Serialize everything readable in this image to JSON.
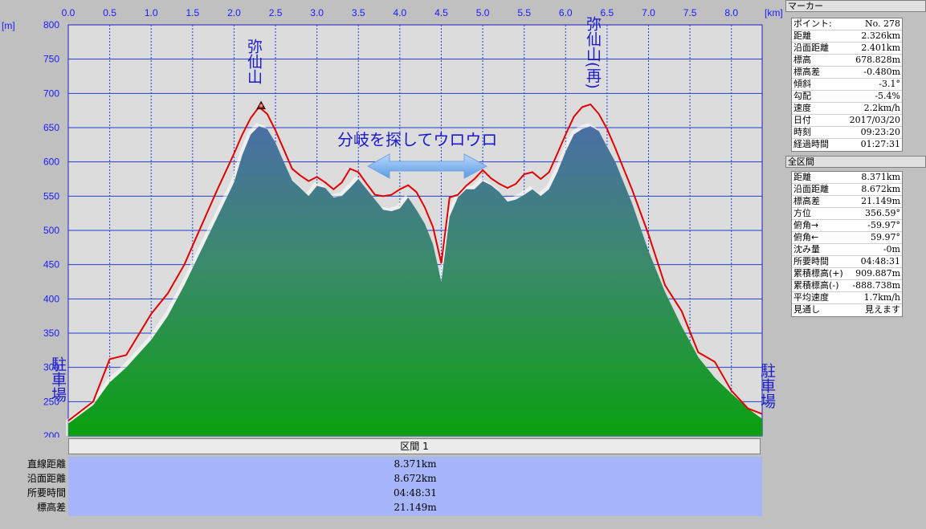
{
  "chart_data": {
    "type": "area",
    "x_unit": "[km]",
    "y_unit": "[m]",
    "xlim": [
      0.0,
      8.371
    ],
    "ylim": [
      200,
      800
    ],
    "x_ticks": [
      "0.0",
      "0.5",
      "1.0",
      "1.5",
      "2.0",
      "2.5",
      "3.0",
      "3.5",
      "4.0",
      "4.5",
      "5.0",
      "5.5",
      "6.0",
      "6.5",
      "7.0",
      "7.5",
      "8.0"
    ],
    "y_ticks": [
      "800",
      "750",
      "700",
      "650",
      "600",
      "550",
      "500",
      "450",
      "400",
      "350",
      "300",
      "250",
      "200"
    ],
    "grid": true,
    "series": [
      {
        "role": "terrain",
        "x": [
          0.0,
          0.3,
          0.5,
          0.7,
          1.0,
          1.2,
          1.4,
          1.6,
          1.8,
          2.0,
          2.1,
          2.2,
          2.3,
          2.4,
          2.5,
          2.6,
          2.7,
          2.8,
          2.9,
          3.0,
          3.1,
          3.2,
          3.3,
          3.4,
          3.5,
          3.6,
          3.7,
          3.8,
          3.9,
          4.0,
          4.1,
          4.2,
          4.3,
          4.4,
          4.5,
          4.6,
          4.7,
          4.8,
          4.9,
          5.0,
          5.1,
          5.2,
          5.3,
          5.4,
          5.5,
          5.6,
          5.7,
          5.8,
          5.9,
          6.0,
          6.1,
          6.2,
          6.3,
          6.4,
          6.5,
          6.6,
          6.7,
          6.8,
          7.0,
          7.2,
          7.4,
          7.6,
          7.8,
          8.0,
          8.2,
          8.371
        ],
        "y": [
          218,
          245,
          278,
          300,
          340,
          375,
          420,
          470,
          520,
          570,
          610,
          640,
          652,
          648,
          628,
          600,
          573,
          562,
          550,
          565,
          562,
          548,
          550,
          562,
          575,
          560,
          545,
          530,
          528,
          532,
          548,
          530,
          510,
          480,
          425,
          520,
          548,
          560,
          560,
          572,
          566,
          556,
          542,
          545,
          552,
          560,
          550,
          560,
          585,
          615,
          640,
          648,
          652,
          645,
          622,
          600,
          570,
          540,
          470,
          410,
          360,
          315,
          285,
          262,
          240,
          225
        ]
      },
      {
        "role": "track",
        "color": "#e00000",
        "x": [
          0.0,
          0.3,
          0.5,
          0.7,
          1.0,
          1.2,
          1.4,
          1.6,
          1.8,
          2.0,
          2.1,
          2.2,
          2.3,
          2.4,
          2.5,
          2.6,
          2.7,
          2.8,
          2.9,
          3.0,
          3.1,
          3.2,
          3.3,
          3.4,
          3.5,
          3.6,
          3.7,
          3.8,
          3.9,
          4.0,
          4.1,
          4.2,
          4.3,
          4.4,
          4.5,
          4.6,
          4.7,
          4.8,
          4.9,
          5.0,
          5.1,
          5.2,
          5.3,
          5.4,
          5.5,
          5.6,
          5.7,
          5.8,
          5.9,
          6.0,
          6.1,
          6.2,
          6.3,
          6.4,
          6.5,
          6.6,
          6.7,
          6.8,
          7.0,
          7.2,
          7.4,
          7.6,
          7.8,
          8.0,
          8.2,
          8.371
        ],
        "y": [
          222,
          250,
          312,
          318,
          378,
          408,
          450,
          505,
          560,
          612,
          640,
          664,
          680,
          670,
          646,
          618,
          590,
          580,
          572,
          578,
          570,
          560,
          570,
          590,
          585,
          568,
          552,
          550,
          552,
          560,
          566,
          556,
          534,
          505,
          452,
          548,
          552,
          565,
          575,
          588,
          576,
          568,
          562,
          568,
          582,
          585,
          575,
          585,
          612,
          640,
          666,
          680,
          684,
          670,
          648,
          620,
          590,
          560,
          494,
          420,
          382,
          322,
          308,
          266,
          240,
          232
        ]
      }
    ],
    "annotations": {
      "peak1": "弥仙山",
      "peak2": "弥仙山(再)",
      "middle": "分岐を探してウロウロ",
      "start": "駐車場",
      "end": "駐車場"
    },
    "marker_x": 2.326
  },
  "section": {
    "header": "区間 1",
    "rows": [
      {
        "label": "直線距離",
        "value": "8.371km"
      },
      {
        "label": "沿面距離",
        "value": "8.672km"
      },
      {
        "label": "所要時間",
        "value": "04:48:31"
      },
      {
        "label": "標高差",
        "value": "21.149m"
      }
    ]
  },
  "marker_panel": {
    "title": "マーカー",
    "rows": [
      {
        "label": "ポイント:",
        "value": "No. 278"
      },
      {
        "label": "距離",
        "value": "2.326km"
      },
      {
        "label": "沿面距離",
        "value": "2.401km"
      },
      {
        "label": "標高",
        "value": "678.828m"
      },
      {
        "label": "標高差",
        "value": "-0.480m"
      },
      {
        "label": "傾斜",
        "value": "-3.1°"
      },
      {
        "label": "勾配",
        "value": "-5.4%"
      },
      {
        "label": "速度",
        "value": "2.2km/h"
      },
      {
        "label": "日付",
        "value": "2017/03/20"
      },
      {
        "label": "時刻",
        "value": "09:23:20"
      },
      {
        "label": "経過時間",
        "value": "01:27:31"
      }
    ]
  },
  "total_panel": {
    "title": "全区間",
    "rows": [
      {
        "label": "距離",
        "value": "8.371km"
      },
      {
        "label": "沿面距離",
        "value": "8.672km"
      },
      {
        "label": "標高差",
        "value": "21.149m"
      },
      {
        "label": "方位",
        "value": "356.59°"
      },
      {
        "label": "俯角→",
        "value": "-59.97°"
      },
      {
        "label": "俯角←",
        "value": "59.97°"
      },
      {
        "label": "沈み量",
        "value": "-0m"
      },
      {
        "label": "所要時間",
        "value": "04:48:31"
      },
      {
        "label": "累積標高(+)",
        "value": "909.887m"
      },
      {
        "label": "累積標高(-)",
        "value": "-888.738m"
      },
      {
        "label": "平均速度",
        "value": "1.7km/h"
      },
      {
        "label": "見通し",
        "value": "見えます"
      }
    ]
  }
}
